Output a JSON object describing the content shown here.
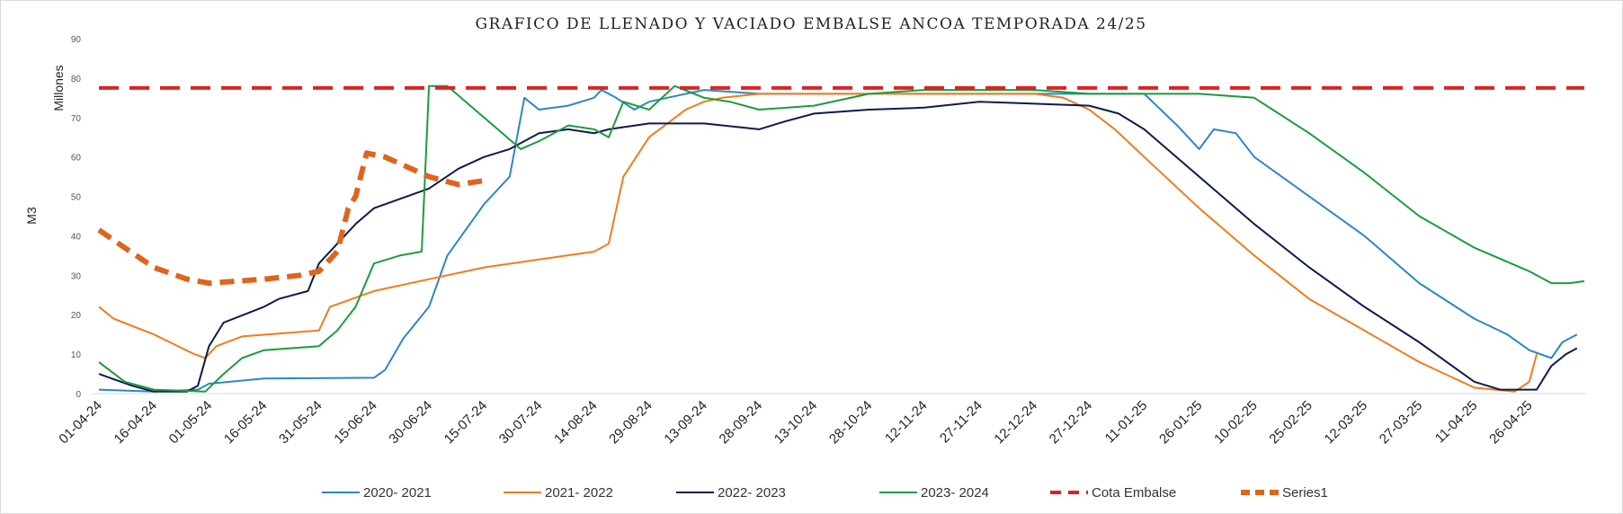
{
  "chart_data": {
    "type": "line",
    "title": "GRAFICO DE LLENADO Y VACIADO EMBALSE ANCOA TEMPORADA 24/25",
    "ylabel": "M3",
    "yunit": "Millones",
    "ylim": [
      0,
      90
    ],
    "yticks": [
      0,
      10,
      20,
      30,
      40,
      50,
      60,
      70,
      80,
      90
    ],
    "grid": false,
    "legend_position": "bottom",
    "x_ticks": [
      "01-04-24",
      "16-04-24",
      "01-05-24",
      "16-05-24",
      "31-05-24",
      "15-06-24",
      "30-06-24",
      "15-07-24",
      "30-07-24",
      "14-08-24",
      "29-08-24",
      "13-09-24",
      "28-09-24",
      "13-10-24",
      "28-10-24",
      "12-11-24",
      "27-11-24",
      "12-12-24",
      "27-12-24",
      "11-01-25",
      "26-01-25",
      "10-02-25",
      "25-02-25",
      "12-03-25",
      "27-03-25",
      "11-04-25",
      "26-04-25"
    ],
    "series": [
      {
        "name": "2020- 2021",
        "color": "#2e86c1",
        "style": "solid",
        "points": [
          [
            "01-04-24",
            1
          ],
          [
            "16-04-24",
            0.5
          ],
          [
            "28-04-24",
            1
          ],
          [
            "01-05-24",
            2.5
          ],
          [
            "16-05-24",
            3.8
          ],
          [
            "15-06-24",
            4
          ],
          [
            "18-06-24",
            6
          ],
          [
            "23-06-24",
            14
          ],
          [
            "30-06-24",
            22
          ],
          [
            "05-07-24",
            35
          ],
          [
            "15-07-24",
            48
          ],
          [
            "22-07-24",
            55
          ],
          [
            "26-07-24",
            75
          ],
          [
            "30-07-24",
            72
          ],
          [
            "07-08-24",
            73
          ],
          [
            "14-08-24",
            75
          ],
          [
            "16-08-24",
            77
          ],
          [
            "20-08-24",
            75
          ],
          [
            "25-08-24",
            72
          ],
          [
            "29-08-24",
            74
          ],
          [
            "13-09-24",
            77
          ],
          [
            "28-09-24",
            76
          ],
          [
            "13-10-24",
            76
          ],
          [
            "28-10-24",
            76
          ],
          [
            "12-11-24",
            76
          ],
          [
            "12-12-24",
            76
          ],
          [
            "27-12-24",
            76
          ],
          [
            "11-01-25",
            76
          ],
          [
            "20-01-25",
            68
          ],
          [
            "26-01-25",
            62
          ],
          [
            "30-01-25",
            67
          ],
          [
            "05-02-25",
            66
          ],
          [
            "10-02-25",
            60
          ],
          [
            "25-02-25",
            50
          ],
          [
            "12-03-25",
            40
          ],
          [
            "27-03-25",
            28
          ],
          [
            "11-04-25",
            19
          ],
          [
            "20-04-25",
            15
          ],
          [
            "26-04-25",
            11
          ],
          [
            "02-05-25",
            9
          ],
          [
            "05-05-25",
            13
          ],
          [
            "09-05-25",
            15
          ]
        ]
      },
      {
        "name": "2021- 2022",
        "color": "#f07c1e",
        "style": "solid",
        "points": [
          [
            "01-04-24",
            22
          ],
          [
            "05-04-24",
            19
          ],
          [
            "16-04-24",
            15
          ],
          [
            "27-04-24",
            10
          ],
          [
            "30-04-24",
            9
          ],
          [
            "03-05-24",
            12
          ],
          [
            "10-05-24",
            14.5
          ],
          [
            "31-05-24",
            16
          ],
          [
            "03-06-24",
            22
          ],
          [
            "15-06-24",
            26
          ],
          [
            "30-06-24",
            29
          ],
          [
            "15-07-24",
            32
          ],
          [
            "30-07-24",
            34
          ],
          [
            "14-08-24",
            36
          ],
          [
            "18-08-24",
            38
          ],
          [
            "22-08-24",
            55
          ],
          [
            "29-08-24",
            65
          ],
          [
            "08-09-24",
            72
          ],
          [
            "13-09-24",
            74
          ],
          [
            "18-09-24",
            75
          ],
          [
            "28-09-24",
            76
          ],
          [
            "13-10-24",
            76
          ],
          [
            "28-10-24",
            76
          ],
          [
            "27-11-24",
            76
          ],
          [
            "12-12-24",
            76
          ],
          [
            "20-12-24",
            75
          ],
          [
            "27-12-24",
            72
          ],
          [
            "03-01-25",
            67
          ],
          [
            "11-01-25",
            60
          ],
          [
            "26-01-25",
            47
          ],
          [
            "10-02-25",
            35
          ],
          [
            "25-02-25",
            24
          ],
          [
            "12-03-25",
            16
          ],
          [
            "27-03-25",
            8
          ],
          [
            "11-04-25",
            1.5
          ],
          [
            "22-04-25",
            0.5
          ],
          [
            "26-04-25",
            3
          ],
          [
            "28-04-25",
            10
          ]
        ]
      },
      {
        "name": "2022- 2023",
        "color": "#0d1b4c",
        "style": "solid",
        "points": [
          [
            "01-04-24",
            5
          ],
          [
            "10-04-24",
            2
          ],
          [
            "16-04-24",
            0.5
          ],
          [
            "25-04-24",
            0.5
          ],
          [
            "28-04-24",
            2
          ],
          [
            "01-05-24",
            12
          ],
          [
            "05-05-24",
            18
          ],
          [
            "16-05-24",
            22
          ],
          [
            "20-05-24",
            24
          ],
          [
            "28-05-24",
            26
          ],
          [
            "31-05-24",
            33
          ],
          [
            "05-06-24",
            38
          ],
          [
            "10-06-24",
            43
          ],
          [
            "15-06-24",
            47
          ],
          [
            "30-06-24",
            52
          ],
          [
            "08-07-24",
            57
          ],
          [
            "15-07-24",
            60
          ],
          [
            "22-07-24",
            62
          ],
          [
            "30-07-24",
            66
          ],
          [
            "07-08-24",
            67
          ],
          [
            "14-08-24",
            66
          ],
          [
            "18-08-24",
            67
          ],
          [
            "29-08-24",
            68.5
          ],
          [
            "13-09-24",
            68.5
          ],
          [
            "28-09-24",
            67
          ],
          [
            "05-10-24",
            69
          ],
          [
            "13-10-24",
            71
          ],
          [
            "28-10-24",
            72
          ],
          [
            "12-11-24",
            72.5
          ],
          [
            "27-11-24",
            74
          ],
          [
            "12-12-24",
            73.5
          ],
          [
            "27-12-24",
            73
          ],
          [
            "04-01-25",
            71
          ],
          [
            "11-01-25",
            67
          ],
          [
            "26-01-25",
            55
          ],
          [
            "10-02-25",
            43
          ],
          [
            "25-02-25",
            32
          ],
          [
            "12-03-25",
            22
          ],
          [
            "27-03-25",
            13
          ],
          [
            "11-04-25",
            3
          ],
          [
            "18-04-25",
            1
          ],
          [
            "28-04-25",
            1
          ],
          [
            "02-05-25",
            7
          ],
          [
            "06-05-25",
            10
          ],
          [
            "09-05-25",
            11.5
          ]
        ]
      },
      {
        "name": "2023- 2024",
        "color": "#1e9b3e",
        "style": "solid",
        "points": [
          [
            "01-04-24",
            8
          ],
          [
            "08-04-24",
            3
          ],
          [
            "16-04-24",
            1
          ],
          [
            "30-04-24",
            0.5
          ],
          [
            "05-05-24",
            5
          ],
          [
            "10-05-24",
            9
          ],
          [
            "16-05-24",
            11
          ],
          [
            "31-05-24",
            12
          ],
          [
            "05-06-24",
            16
          ],
          [
            "10-06-24",
            22
          ],
          [
            "15-06-24",
            33
          ],
          [
            "22-06-24",
            35
          ],
          [
            "28-06-24",
            36
          ],
          [
            "30-06-24",
            78
          ],
          [
            "05-07-24",
            78
          ],
          [
            "10-07-24",
            74
          ],
          [
            "15-07-24",
            70
          ],
          [
            "20-07-24",
            66
          ],
          [
            "25-07-24",
            62
          ],
          [
            "30-07-24",
            64
          ],
          [
            "07-08-24",
            68
          ],
          [
            "14-08-24",
            67
          ],
          [
            "18-08-24",
            65
          ],
          [
            "22-08-24",
            74
          ],
          [
            "29-08-24",
            72
          ],
          [
            "05-09-24",
            78
          ],
          [
            "13-09-24",
            75
          ],
          [
            "20-09-24",
            74
          ],
          [
            "28-09-24",
            72
          ],
          [
            "13-10-24",
            73
          ],
          [
            "28-10-24",
            76
          ],
          [
            "12-11-24",
            77
          ],
          [
            "27-11-24",
            77
          ],
          [
            "12-12-24",
            77
          ],
          [
            "27-12-24",
            76
          ],
          [
            "11-01-25",
            76
          ],
          [
            "26-01-25",
            76
          ],
          [
            "10-02-25",
            75
          ],
          [
            "25-02-25",
            66
          ],
          [
            "12-03-25",
            56
          ],
          [
            "27-03-25",
            45
          ],
          [
            "11-04-25",
            37
          ],
          [
            "26-04-25",
            31
          ],
          [
            "02-05-25",
            28
          ],
          [
            "07-05-25",
            28
          ],
          [
            "11-05-25",
            28.5
          ]
        ]
      },
      {
        "name": "Cota Embalse",
        "color": "#e02020",
        "style": "dashed",
        "points": [
          [
            "01-04-24",
            77.5
          ],
          [
            "11-05-25",
            77.5
          ]
        ]
      },
      {
        "name": "Series1",
        "color": "#e0641e",
        "style": "thick-dashed",
        "points": [
          [
            "01-04-24",
            41.5
          ],
          [
            "08-04-24",
            37
          ],
          [
            "16-04-24",
            32
          ],
          [
            "25-04-24",
            29
          ],
          [
            "01-05-24",
            28
          ],
          [
            "16-05-24",
            29
          ],
          [
            "26-05-24",
            30
          ],
          [
            "31-05-24",
            31
          ],
          [
            "05-06-24",
            36
          ],
          [
            "08-06-24",
            47
          ],
          [
            "10-06-24",
            50
          ],
          [
            "13-06-24",
            61
          ],
          [
            "18-06-24",
            60
          ],
          [
            "30-06-24",
            55
          ],
          [
            "08-07-24",
            53
          ],
          [
            "15-07-24",
            54
          ]
        ]
      }
    ]
  }
}
